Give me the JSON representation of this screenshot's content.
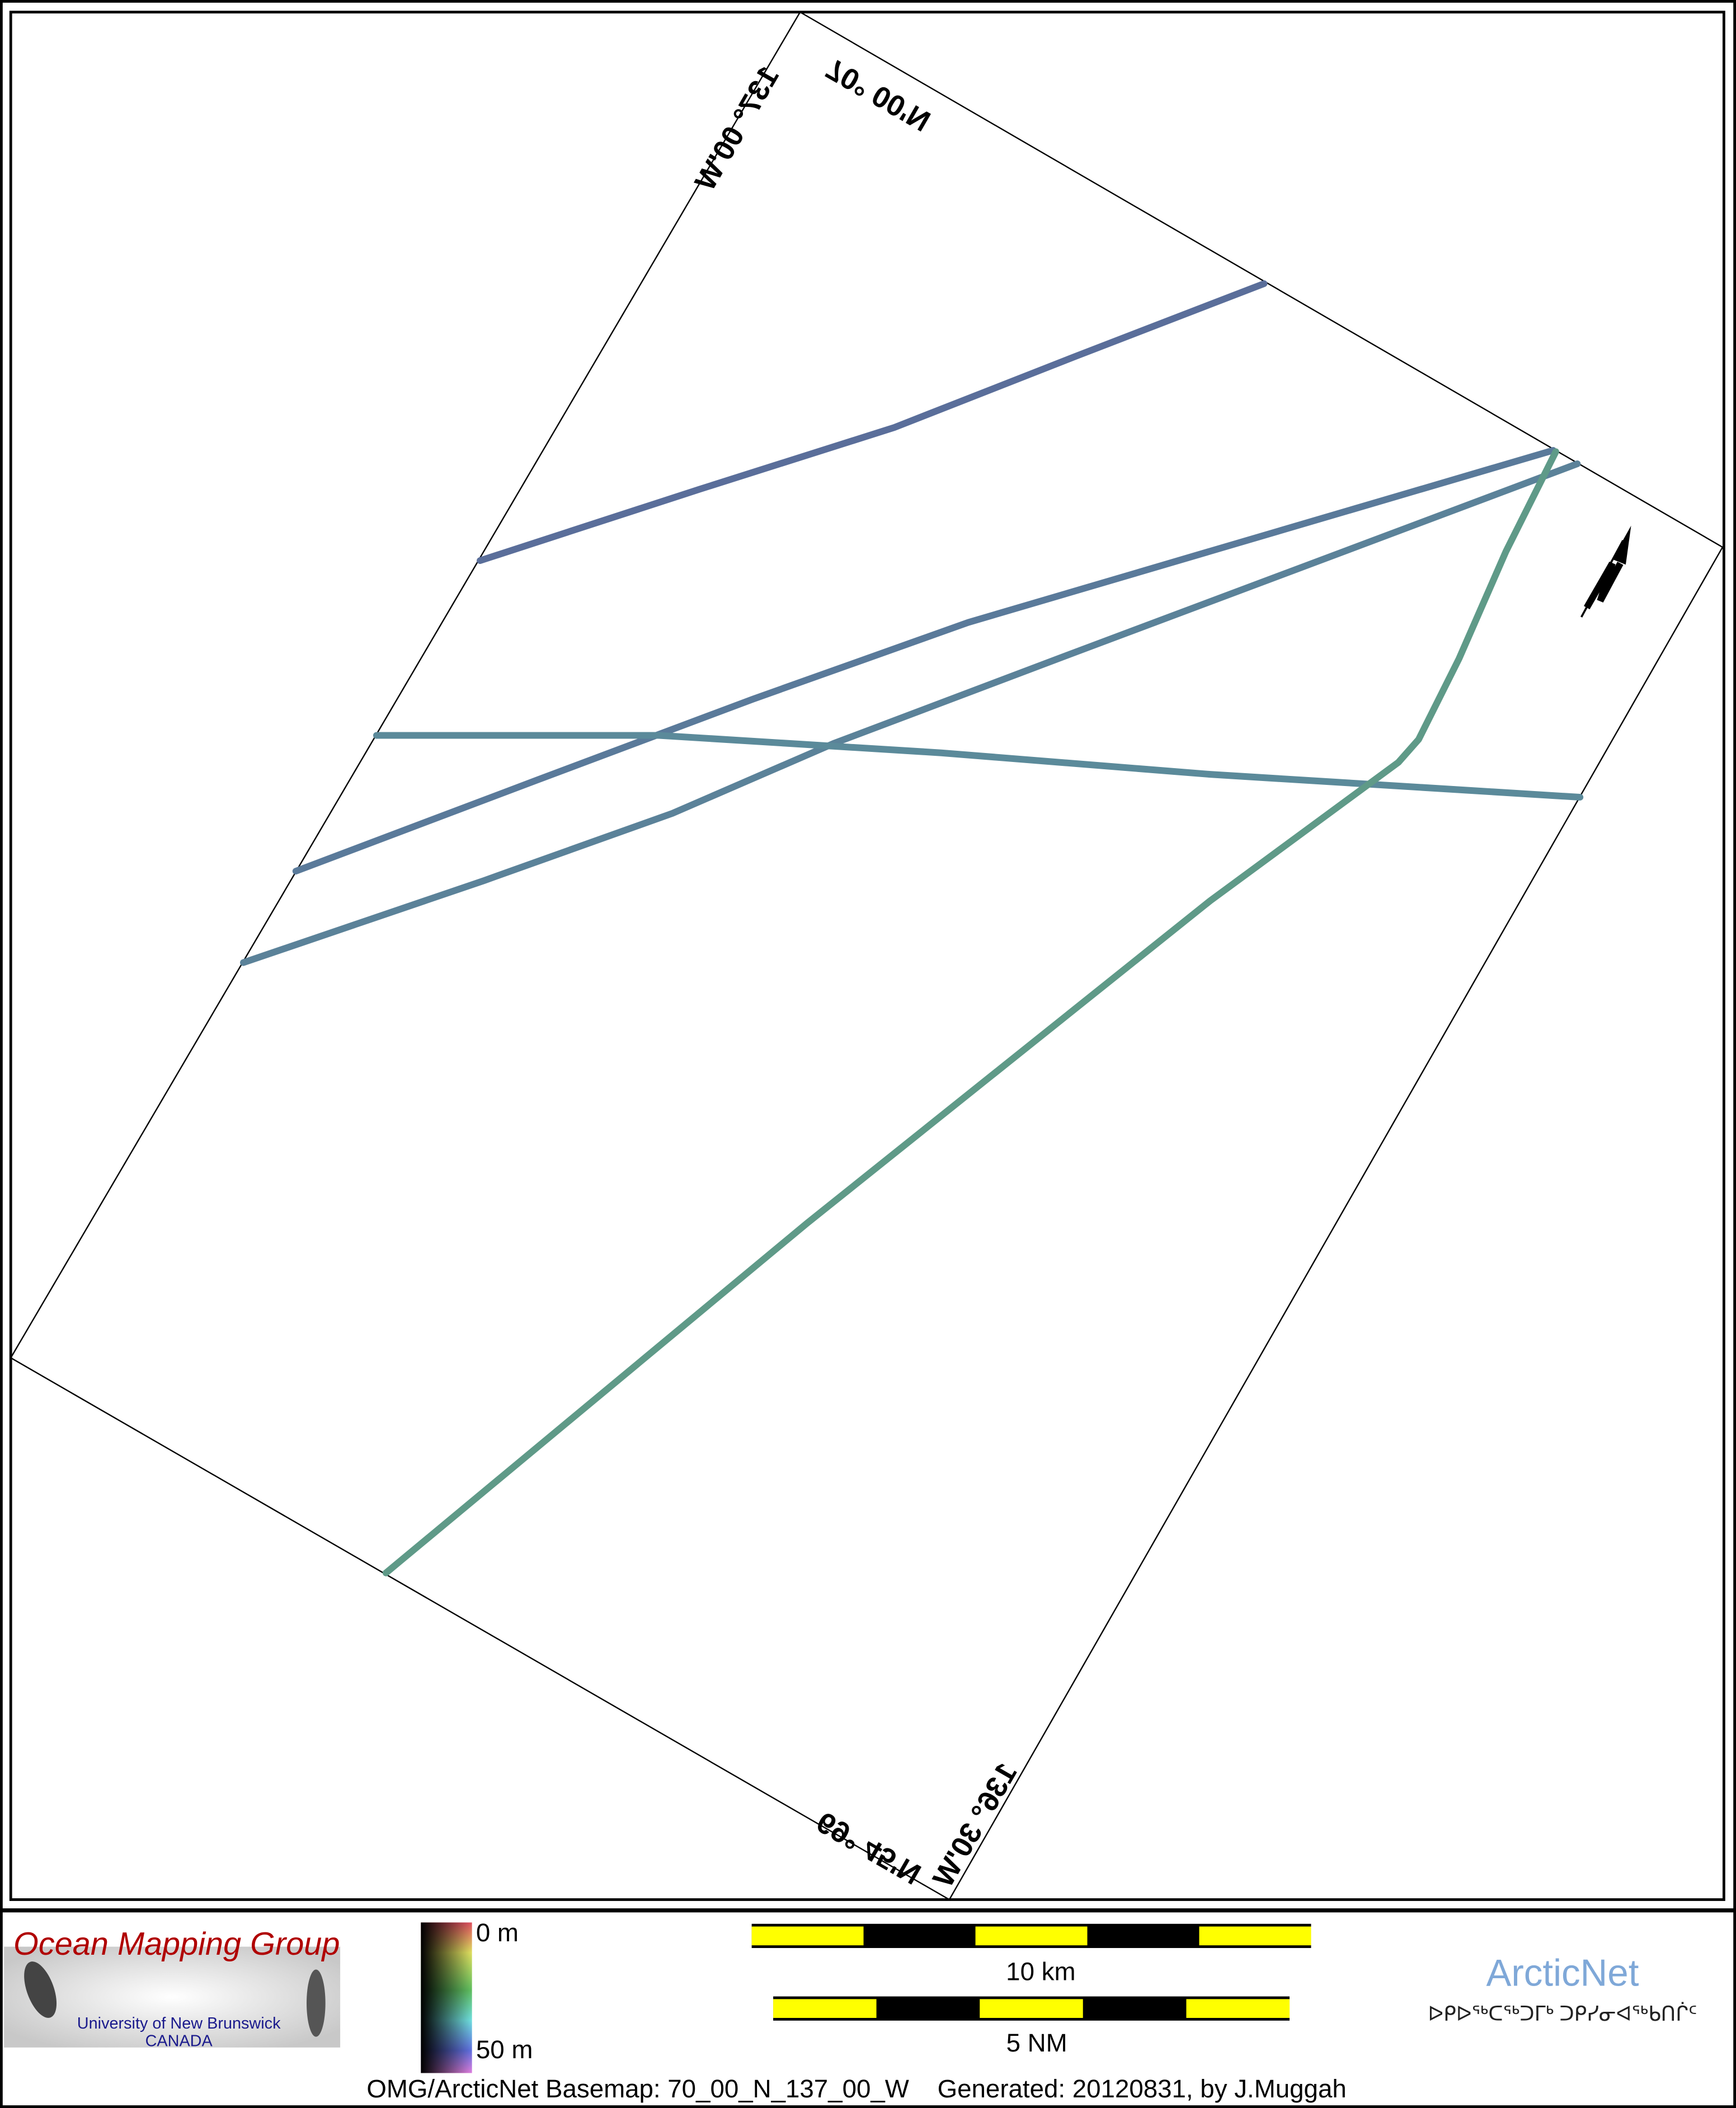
{
  "map": {
    "grid_labels": {
      "north_lat": "70° 00'N",
      "west_lon": "137° 00'W",
      "south_lat": "69° 45'N",
      "east_lon": "136° 30'W"
    },
    "north_arrow_letter": "N",
    "track_colors": {
      "deep": "#5a6e9a",
      "mid": "#5b8a9a",
      "shallow": "#5f9a88"
    }
  },
  "footer": {
    "omg_logo": {
      "title": "Ocean Mapping Group",
      "university": "University of New Brunswick",
      "country": "CANADA",
      "title_color": "#b00000",
      "sub_color": "#1a1a8c"
    },
    "colorbar": {
      "top_label": "0 m",
      "bottom_label": "50 m"
    },
    "scale_bars": [
      {
        "label": "10 km",
        "segments": 5
      },
      {
        "label": "5 NM",
        "segments": 5
      }
    ],
    "scale_colors": {
      "yellow": "#ffff00",
      "black": "#000000"
    },
    "arcticnet": {
      "name": "ArcticNet",
      "syllabics": "ᐅᑭᐅᖅᑕᖅᑐᒥᒃ ᑐᑭᓯᓂᐊᖅᑲᑎᒌᑦ",
      "color": "#7fa8d8"
    },
    "caption": "OMG/ArcticNet Basemap: 70_00_N_137_00_W    Generated: 20120831, by J.Muggah"
  }
}
